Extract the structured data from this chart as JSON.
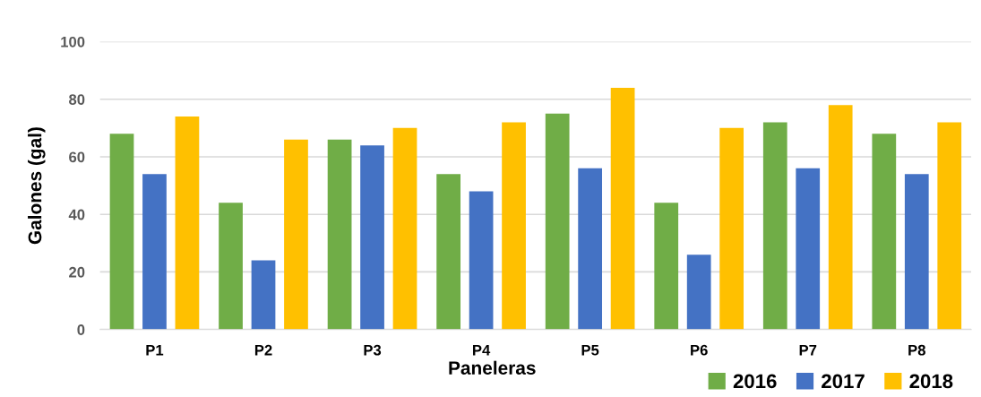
{
  "chart_data": {
    "type": "bar",
    "xlabel": "Paneleras",
    "ylabel": "Galones (gal)",
    "categories": [
      "P1",
      "P2",
      "P3",
      "P4",
      "P5",
      "P6",
      "P7",
      "P8"
    ],
    "series": [
      {
        "name": "2016",
        "color": "#70ad47",
        "values": [
          68,
          44,
          66,
          54,
          75,
          44,
          72,
          68
        ]
      },
      {
        "name": "2017",
        "color": "#4472c4",
        "values": [
          54,
          24,
          64,
          48,
          56,
          26,
          56,
          54
        ]
      },
      {
        "name": "2018",
        "color": "#ffc000",
        "values": [
          74,
          66,
          70,
          72,
          84,
          70,
          78,
          72
        ]
      }
    ],
    "ylim": [
      0,
      100
    ],
    "yticks": [
      0,
      20,
      40,
      60,
      80,
      100
    ],
    "grid": "y",
    "legend": "bottom right"
  }
}
